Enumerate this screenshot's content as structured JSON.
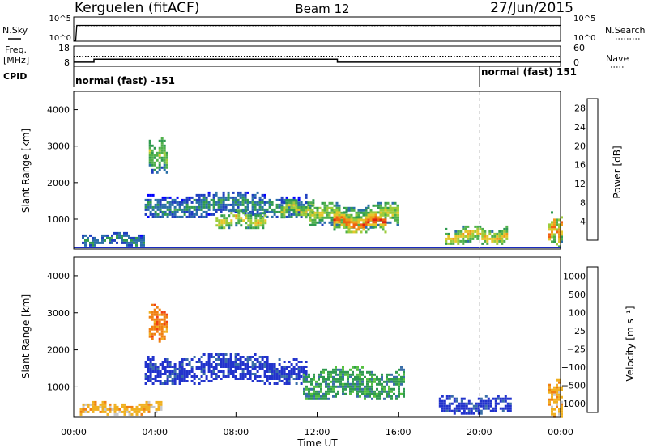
{
  "header": {
    "station": "Kerguelen (fitACF)",
    "beam": "Beam 12",
    "date": "27/Jun/2015"
  },
  "chart_data": [
    {
      "type": "line",
      "panel": "noise",
      "left_label": "N.Sky",
      "right_label": "N.Search",
      "left_ticks": [
        "10^5",
        "10^0"
      ],
      "right_ticks": [
        "10^5",
        "10^0"
      ],
      "series": [
        {
          "name": "N.Sky",
          "x": [
            0.0,
            0.1,
            0.15,
            24.0
          ],
          "values": [
            0,
            0,
            3.3,
            3.3
          ]
        },
        {
          "name": "N.Search",
          "x": [
            0.0,
            24.0
          ],
          "values": [
            3.0,
            3.0
          ]
        }
      ]
    },
    {
      "type": "line",
      "panel": "frequency",
      "left_label_line1": "Freq.",
      "left_label_line2": "[MHz]",
      "right_label": "Nave",
      "left_ticks": [
        "18",
        "8"
      ],
      "right_ticks": [
        "60",
        "0"
      ],
      "ylim": [
        8,
        18
      ],
      "series": [
        {
          "name": "Freq.",
          "x": [
            0.0,
            1.0,
            1.0,
            13.0,
            13.0,
            24.0
          ],
          "values": [
            9.8,
            9.8,
            11.4,
            11.4,
            9.8,
            9.8
          ]
        },
        {
          "name": "Nave",
          "x": [
            0.0,
            24.0
          ],
          "values": [
            30,
            30
          ]
        }
      ]
    },
    {
      "type": "table",
      "panel": "cpid",
      "label": "CPID",
      "segments": [
        {
          "start": 0.0,
          "end": 20.0,
          "text": "normal (fast) -151"
        },
        {
          "start": 20.0,
          "end": 24.0,
          "text": "normal (fast) 151"
        }
      ]
    },
    {
      "type": "heatmap",
      "panel": "power",
      "ylabel": "Slant Range [km]",
      "ylim": [
        180,
        4500
      ],
      "yticks": [
        "1000",
        "2000",
        "3000",
        "4000"
      ],
      "colorbar_label": "Power [dB]",
      "colorbar_ticks": [
        "4",
        "8",
        "12",
        "16",
        "20",
        "24",
        "28"
      ],
      "colorbar_range": [
        0,
        30
      ],
      "colormap": [
        "#0000ff",
        "#1e3fbf",
        "#2a6fa8",
        "#2f9a4f",
        "#4fb04a",
        "#9dcc3a",
        "#e6c62a",
        "#f09a1a",
        "#f06010",
        "#e02010"
      ],
      "patches": [
        {
          "t": 3.5,
          "r": 1400,
          "dt": 8.0,
          "dr": 350,
          "p": 10
        },
        {
          "t": 7.0,
          "r": 1000,
          "dt": 2.5,
          "dr": 250,
          "p": 20
        },
        {
          "t": 10.2,
          "r": 1280,
          "dt": 1.6,
          "dr": 260,
          "p": 18
        },
        {
          "t": 11.6,
          "r": 1100,
          "dt": 4.4,
          "dr": 360,
          "p": 18
        },
        {
          "t": 12.8,
          "r": 920,
          "dt": 2.6,
          "dr": 280,
          "p": 27
        },
        {
          "t": 3.7,
          "r": 2750,
          "dt": 0.9,
          "dr": 500,
          "p": 16
        },
        {
          "t": 0.4,
          "r": 450,
          "dt": 3.0,
          "dr": 180,
          "p": 10
        },
        {
          "t": 18.3,
          "r": 550,
          "dt": 3.0,
          "dr": 260,
          "p": 21
        },
        {
          "t": 23.4,
          "r": 700,
          "dt": 0.6,
          "dr": 500,
          "p": 24
        }
      ]
    },
    {
      "type": "heatmap",
      "panel": "velocity",
      "ylabel": "Slant Range [km]",
      "ylim": [
        180,
        4500
      ],
      "yticks": [
        "1000",
        "2000",
        "3000",
        "4000"
      ],
      "xticks": [
        "00:00",
        "04:00",
        "08:00",
        "12:00",
        "16:00",
        "20:00",
        "00:00"
      ],
      "xlabel": "Time UT",
      "colorbar_label": "Velocity [m s⁻¹]",
      "colorbar_ticks": [
        "1000",
        "500",
        "100",
        "25",
        "−25",
        "−100",
        "−500",
        "−1000"
      ],
      "colormap": [
        "#2233cc",
        "#3a6ea8",
        "#2f9a4f",
        "#55c040",
        "#c8c8c8",
        "#f0b020",
        "#f08010",
        "#f04010",
        "#e01010"
      ],
      "patches": [
        {
          "t": 3.5,
          "r": 1500,
          "dt": 8.0,
          "dr": 400,
          "v": 0
        },
        {
          "t": 11.3,
          "r": 1100,
          "dt": 5.0,
          "dr": 450,
          "v": 2
        },
        {
          "t": 3.7,
          "r": 2750,
          "dt": 0.9,
          "dr": 500,
          "v": 6
        },
        {
          "t": 0.3,
          "r": 420,
          "dt": 4.0,
          "dr": 180,
          "v": 5
        },
        {
          "t": 18.0,
          "r": 500,
          "dt": 3.5,
          "dr": 260,
          "v": 0
        },
        {
          "t": 23.4,
          "r": 700,
          "dt": 0.6,
          "dr": 500,
          "v": 5
        }
      ]
    }
  ]
}
